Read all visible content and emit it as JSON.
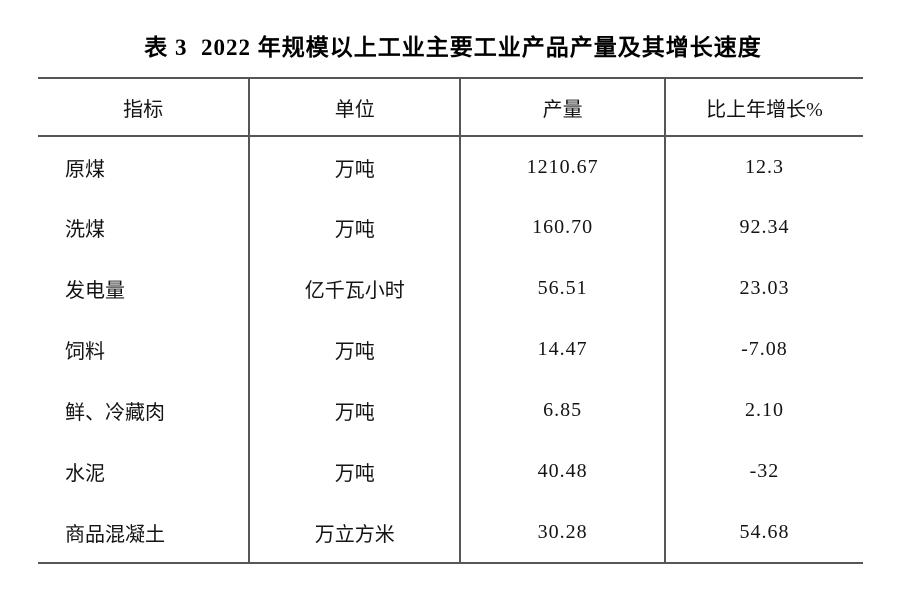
{
  "title": "表 3  2022 年规模以上工业主要工业产品产量及其增长速度",
  "colors": {
    "background": "#ffffff",
    "text": "#141414",
    "rule_line": "#565656"
  },
  "table": {
    "columns": [
      "指标",
      "单位",
      "产量",
      "比上年增长%"
    ],
    "rows": [
      {
        "indicator": "原煤",
        "unit": "万吨",
        "output": "1210.67",
        "growth": "12.3"
      },
      {
        "indicator": "洗煤",
        "unit": "万吨",
        "output": "160.70",
        "growth": "92.34"
      },
      {
        "indicator": "发电量",
        "unit": "亿千瓦小时",
        "output": "56.51",
        "growth": "23.03"
      },
      {
        "indicator": "饲料",
        "unit": "万吨",
        "output": "14.47",
        "growth": "-7.08"
      },
      {
        "indicator": "鲜、冷藏肉",
        "unit": "万吨",
        "output": "6.85",
        "growth": "2.10"
      },
      {
        "indicator": "水泥",
        "unit": "万吨",
        "output": "40.48",
        "growth": "-32"
      },
      {
        "indicator": "商品混凝土",
        "unit": "万立方米",
        "output": "30.28",
        "growth": "54.68"
      }
    ]
  }
}
